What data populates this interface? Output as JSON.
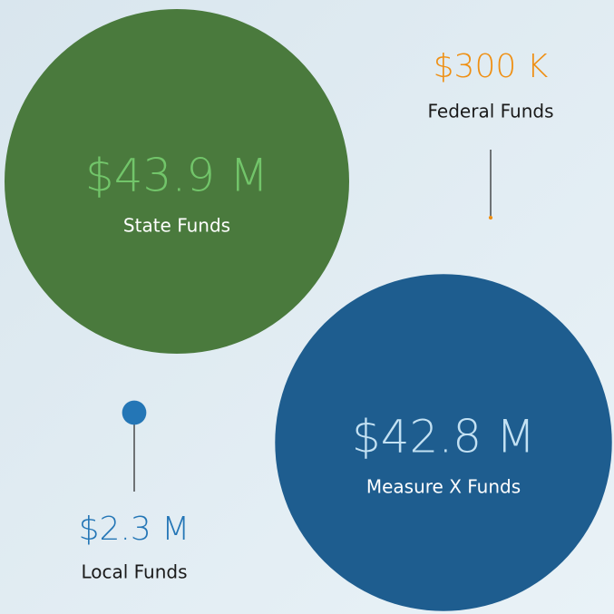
{
  "chart_data": {
    "type": "bubble",
    "categories": [
      "State Funds",
      "Federal Funds",
      "Local Funds",
      "Measure X Funds"
    ],
    "values": [
      43900000,
      300000,
      2300000,
      42800000
    ],
    "value_labels": [
      "$43.9 M",
      "$300 K",
      "$2.3 M",
      "$42.8 M"
    ],
    "colors": [
      "#4a7a3d",
      "#ef8f12",
      "#2476b6",
      "#1e5d8f"
    ],
    "label_colors": [
      "#72c56a",
      "#ef8f12",
      "#2476b6",
      "#c3e1f3"
    ]
  }
}
